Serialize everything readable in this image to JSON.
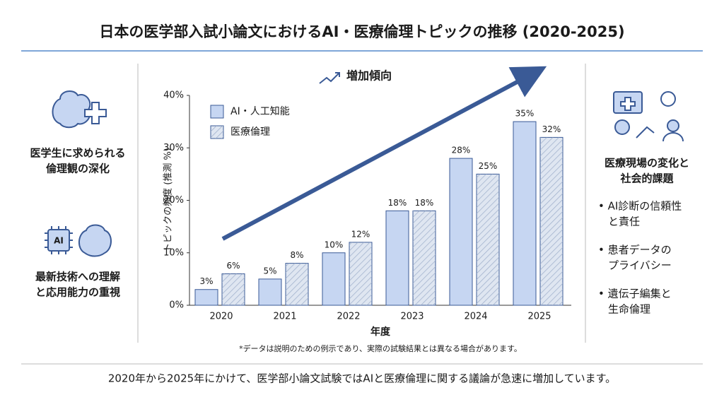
{
  "chart_data": {
    "type": "bar",
    "title": "日本の医学部入試小論文におけるAI・医療倫理トピックの推移 (2020-2025)",
    "annotation": "増加傾向",
    "x_label": "年度",
    "y_label": "トピックの頻度 (推測 %)",
    "note": "*データは説明のための例示であり、実際の試験結果とは異なる場合があります。",
    "categories": [
      "2020",
      "2021",
      "2022",
      "2023",
      "2024",
      "2025"
    ],
    "series": [
      {
        "name": "AI・人工知能",
        "color": "#c6d6f2",
        "values": [
          3,
          5,
          10,
          18,
          28,
          35
        ],
        "value_labels": [
          "3%",
          "5%",
          "10%",
          "18%",
          "28%",
          "35%"
        ]
      },
      {
        "name": "医療倫理",
        "color": "#dfe6f1",
        "pattern": "hatch",
        "values": [
          6,
          8,
          12,
          18,
          25,
          32
        ],
        "value_labels": [
          "6%",
          "8%",
          "12%",
          "18%",
          "25%",
          "32%"
        ]
      }
    ],
    "ylim": [
      0,
      40
    ],
    "yticks": [
      {
        "value": 0,
        "label": "0%"
      },
      {
        "value": 10,
        "label": "10%"
      },
      {
        "value": 20,
        "label": "20%"
      },
      {
        "value": 30,
        "label": "30%"
      },
      {
        "value": 40,
        "label": "40%"
      }
    ],
    "grid": false,
    "legend": "upper-left"
  },
  "left_panel": [
    {
      "lines": [
        "医学生に求められる",
        "倫理観の深化"
      ]
    },
    {
      "lines": [
        "最新技術への理解",
        "と応用能力の重視"
      ]
    }
  ],
  "right_panel": {
    "heading": [
      "医療現場の変化と",
      "社会的課題"
    ],
    "bullets": [
      [
        "• AI診断の信頼性",
        "と責任"
      ],
      [
        "• 患者データの",
        "プライバシー"
      ],
      [
        "• 遺伝子編集と",
        "生命倫理"
      ]
    ]
  },
  "footer": "2020年から2025年にかけて、医学部小論文試験ではAIと医療倫理に関する議論が急速に増加しています。"
}
